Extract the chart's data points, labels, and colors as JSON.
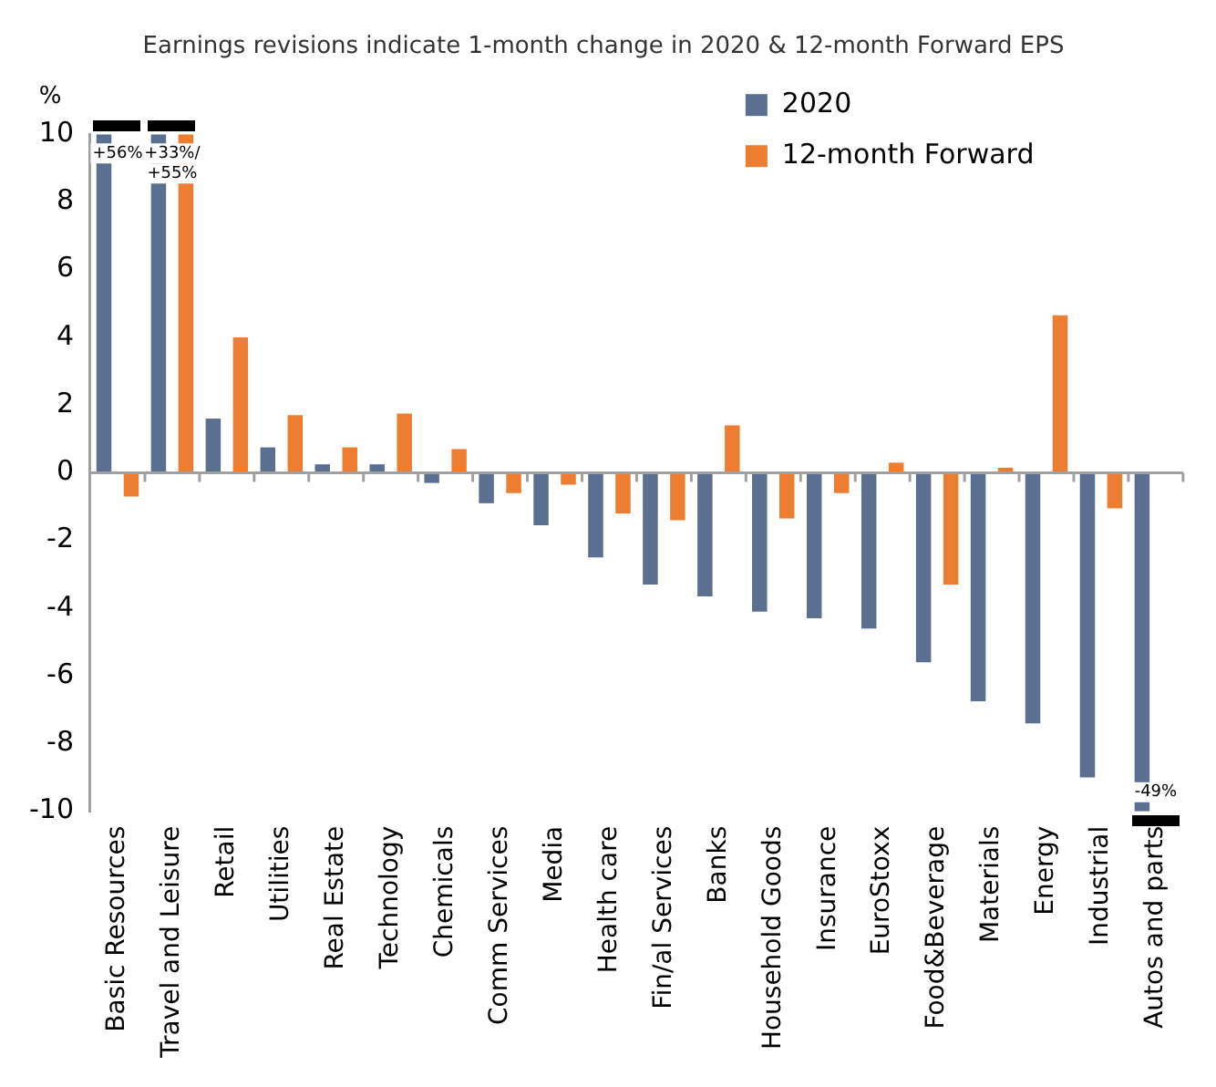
{
  "chart_data": {
    "type": "bar",
    "title": "Earnings revisions indicate 1-month change in 2020 & 12-month Forward EPS",
    "ylabel": "%",
    "categories": [
      "Basic Resources",
      "Travel and Leisure",
      "Retail",
      "Utilities",
      "Real Estate",
      "Technology",
      "Chemicals",
      "Comm Services",
      "Media",
      "Health care",
      "Fin/al Services",
      "Banks",
      "Household Goods",
      "Insurance",
      "EuroStoxx",
      "Food&Beverage",
      "Materials",
      "Energy",
      "Industrial",
      "Autos and parts"
    ],
    "series": [
      {
        "name": "2020",
        "color": "#5b7090",
        "values": [
          10,
          10,
          1.6,
          0.75,
          0.25,
          0.25,
          -0.3,
          -0.9,
          -1.55,
          -2.5,
          -3.3,
          -3.65,
          -4.1,
          -4.3,
          -4.6,
          -5.6,
          -6.75,
          -7.4,
          -9,
          -10
        ]
      },
      {
        "name": "12-month Forward",
        "color": "#ed7d31",
        "values": [
          -0.7,
          10,
          4,
          1.7,
          0.75,
          1.75,
          0.7,
          -0.6,
          -0.35,
          -1.2,
          -1.4,
          1.4,
          -1.35,
          -0.6,
          0.3,
          -3.3,
          0.15,
          4.65,
          -1.05,
          null
        ]
      }
    ],
    "ylim": [
      -10,
      10
    ],
    "yticks": [
      -10,
      -8,
      -6,
      -4,
      -2,
      0,
      2,
      4,
      6,
      8,
      10
    ],
    "grid": false,
    "ref_lines": [
      {
        "axis": "y",
        "value": 0,
        "color": "#a0a0a0"
      }
    ],
    "legend": "top right",
    "annotations": [
      {
        "text": "+56%",
        "x": "Basic Resources",
        "y": 10
      },
      {
        "text": "+33%/ +55%",
        "x": "Travel and Leisure",
        "y": 10
      },
      {
        "text": "-49%",
        "x": "Autos and parts",
        "y": -10
      }
    ]
  }
}
